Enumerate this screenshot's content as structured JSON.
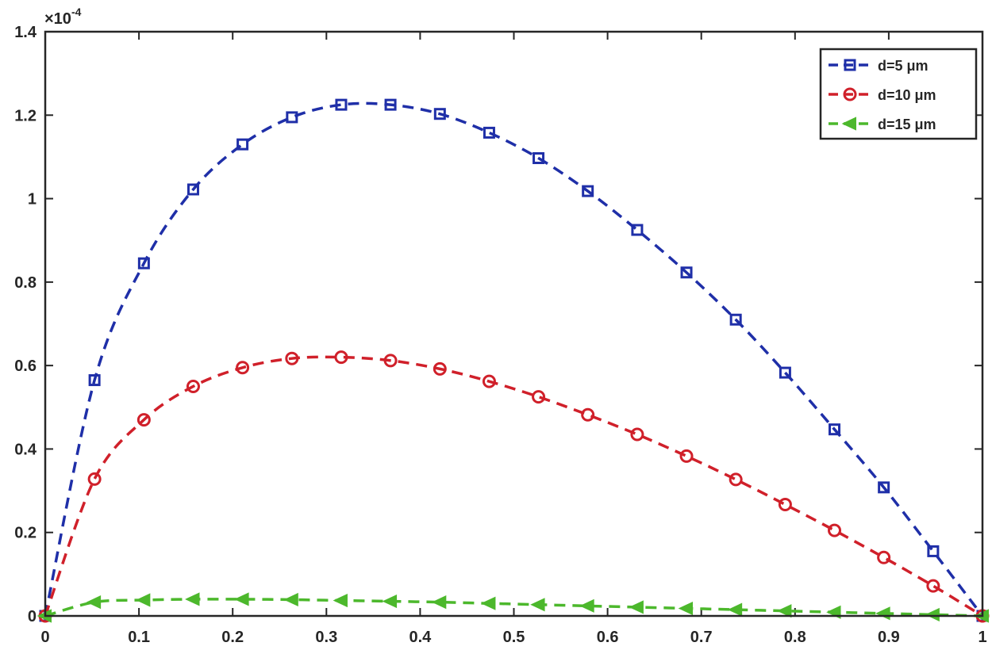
{
  "chart_data": {
    "type": "line",
    "title": "",
    "xlabel": "",
    "ylabel": "",
    "xlim": [
      0,
      1
    ],
    "ylim": [
      0,
      1.4
    ],
    "y_exponent_label": "×10",
    "y_exponent_power": "-4",
    "x_ticks": [
      0,
      0.1,
      0.2,
      0.3,
      0.4,
      0.5,
      0.6,
      0.7,
      0.8,
      0.9,
      1
    ],
    "x_tick_labels": [
      "0",
      "0.1",
      "0.2",
      "0.3",
      "0.4",
      "0.5",
      "0.6",
      "0.7",
      "0.8",
      "0.9",
      "1"
    ],
    "y_ticks": [
      0,
      0.2,
      0.4,
      0.6,
      0.8,
      1,
      1.2,
      1.4
    ],
    "y_tick_labels": [
      "0",
      "0.2",
      "0.4",
      "0.6",
      "0.8",
      "1",
      "1.2",
      "1.4"
    ],
    "grid": false,
    "legend_position": "top-right",
    "x": [
      0,
      0.0526,
      0.1053,
      0.1579,
      0.2105,
      0.2632,
      0.3158,
      0.3684,
      0.4211,
      0.4737,
      0.5263,
      0.5789,
      0.6316,
      0.6842,
      0.7368,
      0.7895,
      0.8421,
      0.8947,
      0.9474,
      1
    ],
    "series": [
      {
        "name": "d=5 μm",
        "color": "#1f2fa8",
        "marker": "square",
        "values": [
          0,
          0.565,
          0.845,
          1.022,
          1.13,
          1.195,
          1.225,
          1.225,
          1.203,
          1.158,
          1.097,
          1.018,
          0.925,
          0.823,
          0.71,
          0.583,
          0.447,
          0.308,
          0.155,
          0
        ]
      },
      {
        "name": "d=10 μm",
        "color": "#d0202a",
        "marker": "circle",
        "values": [
          0,
          0.328,
          0.47,
          0.55,
          0.595,
          0.617,
          0.62,
          0.612,
          0.592,
          0.562,
          0.525,
          0.482,
          0.435,
          0.383,
          0.327,
          0.267,
          0.205,
          0.14,
          0.072,
          0
        ]
      },
      {
        "name": "d=15 μm",
        "color": "#4cb82c",
        "marker": "triangle-left",
        "values": [
          0,
          0.033,
          0.038,
          0.04,
          0.04,
          0.039,
          0.037,
          0.035,
          0.033,
          0.03,
          0.027,
          0.024,
          0.021,
          0.018,
          0.015,
          0.012,
          0.009,
          0.006,
          0.003,
          0
        ]
      }
    ]
  }
}
